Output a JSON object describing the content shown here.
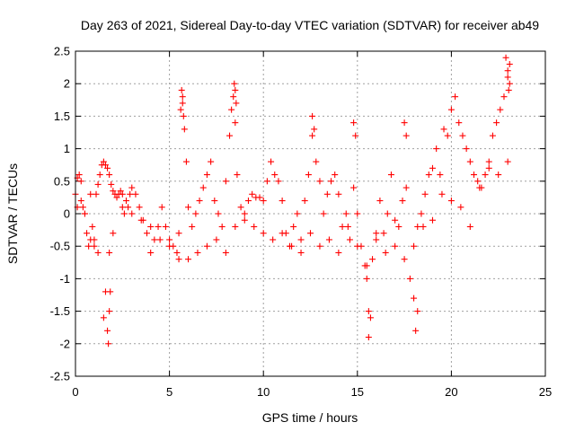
{
  "chart_data": {
    "type": "scatter",
    "title": "Day 263 of 2021, Sidereal Day-to-day VTEC variation (SDTVAR) for receiver ab49",
    "xlabel": "GPS time / hours",
    "ylabel": "SDTVAR / TECUs",
    "xlim": [
      0,
      25
    ],
    "ylim": [
      -2.5,
      2.5
    ],
    "x_ticks": [
      "0",
      "5",
      "10",
      "15",
      "20",
      "25"
    ],
    "y_ticks": [
      "-2.5",
      "-2",
      "-1.5",
      "-1",
      "-0.5",
      "0",
      "0.5",
      "1",
      "1.5",
      "2",
      "2.5"
    ],
    "grid": true,
    "marker": "+",
    "color": "#ff0000",
    "series": [
      {
        "name": "SDTVAR",
        "x": [
          0.0,
          0.1,
          0.2,
          0.3,
          0.4,
          0.5,
          0.6,
          0.7,
          0.8,
          0.9,
          1.0,
          1.1,
          1.2,
          1.3,
          1.4,
          1.5,
          1.6,
          1.7,
          1.8,
          1.9,
          2.0,
          2.1,
          2.2,
          2.3,
          2.4,
          2.5,
          2.6,
          2.7,
          2.8,
          2.9,
          3.0,
          3.2,
          3.4,
          3.6,
          3.8,
          4.0,
          4.2,
          4.4,
          4.6,
          4.8,
          5.0,
          5.2,
          5.4,
          5.5,
          5.6,
          5.7,
          5.8,
          5.9,
          6.0,
          6.2,
          6.4,
          6.6,
          6.8,
          7.0,
          7.2,
          7.4,
          7.6,
          7.8,
          8.0,
          8.2,
          8.3,
          8.4,
          8.5,
          8.6,
          8.8,
          9.0,
          9.2,
          9.4,
          9.6,
          9.8,
          10.0,
          10.2,
          10.4,
          10.6,
          10.8,
          11.0,
          11.2,
          11.4,
          11.6,
          11.8,
          12.0,
          12.2,
          12.4,
          12.6,
          12.8,
          13.0,
          13.2,
          13.4,
          13.6,
          13.8,
          14.0,
          14.2,
          14.4,
          14.6,
          14.8,
          15.0,
          15.2,
          15.4,
          15.5,
          15.6,
          15.8,
          16.0,
          16.2,
          16.4,
          16.6,
          16.8,
          17.0,
          17.2,
          17.4,
          17.6,
          17.8,
          18.0,
          18.2,
          18.4,
          18.6,
          18.8,
          19.0,
          19.2,
          19.4,
          19.6,
          19.8,
          20.0,
          20.2,
          20.4,
          20.6,
          20.8,
          21.0,
          21.2,
          21.4,
          21.6,
          21.8,
          22.0,
          22.2,
          22.4,
          22.6,
          22.8,
          23.0,
          23.1,
          0.1,
          0.3,
          0.5,
          0.8,
          1.0,
          1.2,
          1.5,
          1.6,
          1.8,
          2.0,
          2.5,
          3.0,
          3.5,
          4.0,
          4.5,
          5.0,
          5.5,
          6.0,
          6.5,
          7.0,
          7.5,
          8.0,
          8.5,
          9.0,
          9.5,
          10.0,
          10.5,
          11.0,
          11.5,
          12.0,
          12.5,
          13.0,
          13.5,
          14.0,
          14.5,
          15.0,
          15.5,
          16.0,
          16.5,
          17.0,
          17.5,
          18.0,
          18.5,
          19.0,
          19.5,
          20.0,
          20.5,
          21.0,
          21.5,
          22.0,
          22.5,
          23.0,
          1.7,
          1.75,
          1.8,
          1.85,
          5.65,
          5.7,
          5.75,
          8.45,
          8.5,
          8.55,
          12.6,
          12.7,
          14.8,
          14.9,
          15.6,
          15.7,
          17.5,
          17.6,
          18.1,
          18.2,
          22.9,
          23.0,
          23.05,
          23.1
        ],
        "y": [
          0.3,
          0.55,
          0.6,
          0.5,
          0.1,
          0.0,
          -0.3,
          -0.5,
          0.3,
          -0.2,
          -0.4,
          0.3,
          0.45,
          0.6,
          0.75,
          0.8,
          0.75,
          0.7,
          0.6,
          0.45,
          0.35,
          0.3,
          0.25,
          0.3,
          0.35,
          0.3,
          0.0,
          0.2,
          0.1,
          0.3,
          0.4,
          0.3,
          0.1,
          -0.1,
          -0.3,
          -0.6,
          -0.4,
          -0.2,
          0.1,
          -0.2,
          -0.4,
          -0.5,
          -0.6,
          -0.7,
          1.6,
          1.8,
          1.3,
          0.8,
          0.1,
          -0.2,
          0.0,
          0.2,
          0.4,
          0.6,
          0.8,
          0.2,
          0.0,
          -0.2,
          0.5,
          1.2,
          1.6,
          1.8,
          1.4,
          0.6,
          0.1,
          0.0,
          0.2,
          0.3,
          0.25,
          0.25,
          0.2,
          0.5,
          0.8,
          0.6,
          0.5,
          0.2,
          -0.3,
          -0.5,
          -0.2,
          0.0,
          -0.4,
          0.2,
          0.6,
          1.2,
          0.8,
          0.5,
          0.0,
          0.3,
          0.5,
          0.6,
          0.3,
          -0.2,
          0.0,
          -0.4,
          0.4,
          0.0,
          -0.5,
          -0.8,
          -1.0,
          -1.5,
          -0.7,
          -0.4,
          0.2,
          -0.3,
          0.0,
          0.6,
          -0.5,
          -0.2,
          0.2,
          0.4,
          -1.0,
          -1.3,
          -0.2,
          0.0,
          0.3,
          0.6,
          0.7,
          1.0,
          0.6,
          1.3,
          1.2,
          1.6,
          1.8,
          1.4,
          1.2,
          1.0,
          0.8,
          0.6,
          0.5,
          0.4,
          0.6,
          0.8,
          1.2,
          1.4,
          1.6,
          1.8,
          2.1,
          2.3,
          0.1,
          0.2,
          0.0,
          -0.4,
          -0.5,
          -0.6,
          -1.6,
          -1.2,
          -0.6,
          -0.3,
          0.1,
          0.0,
          -0.1,
          -0.2,
          -0.4,
          -0.5,
          -0.3,
          -0.7,
          -0.6,
          -0.5,
          -0.4,
          -0.6,
          -0.2,
          -0.1,
          -0.2,
          -0.3,
          -0.4,
          -0.3,
          -0.5,
          -0.6,
          -0.3,
          -0.5,
          -0.4,
          -0.6,
          -0.2,
          -0.5,
          -0.8,
          -0.3,
          -0.6,
          -0.1,
          -0.7,
          -0.5,
          -0.2,
          -0.1,
          0.3,
          0.2,
          0.1,
          -0.2,
          0.4,
          0.7,
          0.6,
          0.8,
          -1.8,
          -2.0,
          -1.5,
          -1.2,
          1.9,
          1.7,
          1.5,
          2.0,
          1.9,
          1.7,
          1.5,
          1.3,
          1.4,
          1.2,
          -1.9,
          -1.6,
          1.4,
          1.2,
          -1.8,
          -1.5,
          2.4,
          2.2,
          1.9,
          2.0
        ]
      }
    ]
  }
}
